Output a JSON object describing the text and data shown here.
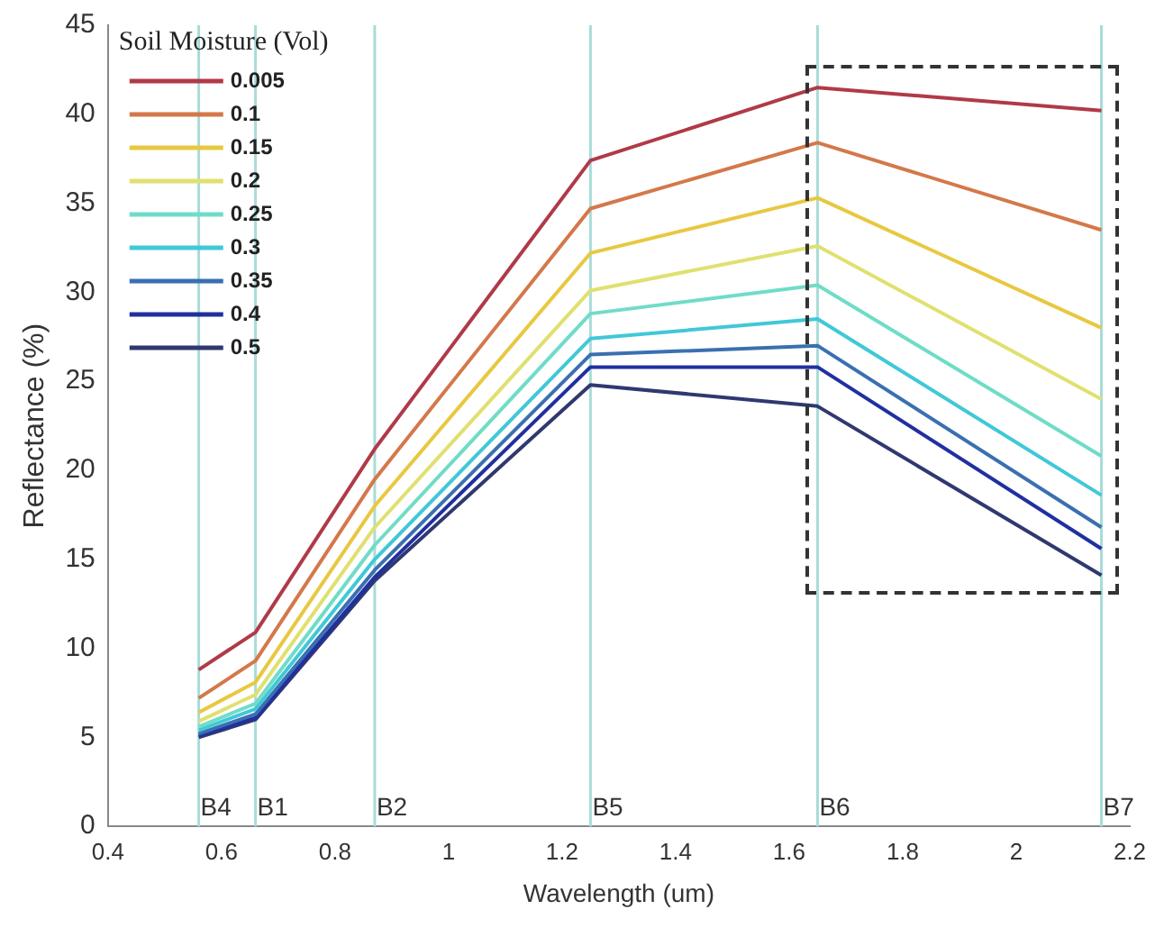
{
  "chart_data": {
    "type": "line",
    "xlabel": "Wavelength (um)",
    "ylabel": "Reflectance (%)",
    "legend_title": "Soil Moisture (Vol)",
    "legend": "top left",
    "marker": "none",
    "line_style": "solid",
    "grid": false,
    "x": [
      0.56,
      0.66,
      0.87,
      1.25,
      1.65,
      2.15
    ],
    "xlim": [
      0.4,
      2.2
    ],
    "xticks": [
      0.4,
      0.6,
      0.8,
      1,
      1.2,
      1.4,
      1.6,
      1.8,
      2,
      2.2
    ],
    "ylim": [
      0,
      45
    ],
    "yticks": [
      0,
      5,
      10,
      15,
      20,
      25,
      30,
      35,
      40,
      45
    ],
    "series": [
      {
        "name": "0.005",
        "color": "#b03a48",
        "values": [
          8.8,
          10.9,
          21.2,
          37.4,
          41.5,
          40.2
        ]
      },
      {
        "name": "0.1",
        "color": "#d4784a",
        "values": [
          7.2,
          9.3,
          19.5,
          34.7,
          38.4,
          33.5
        ]
      },
      {
        "name": "0.15",
        "color": "#e8c840",
        "values": [
          6.4,
          8.1,
          18.0,
          32.2,
          35.3,
          28.0
        ]
      },
      {
        "name": "0.2",
        "color": "#e0e070",
        "values": [
          5.9,
          7.4,
          16.8,
          30.1,
          32.6,
          24.0
        ]
      },
      {
        "name": "0.25",
        "color": "#70dcc8",
        "values": [
          5.6,
          6.9,
          15.8,
          28.8,
          30.4,
          20.8
        ]
      },
      {
        "name": "0.3",
        "color": "#40c8d8",
        "values": [
          5.4,
          6.6,
          15.0,
          27.4,
          28.5,
          18.6
        ]
      },
      {
        "name": "0.35",
        "color": "#3a70b0",
        "values": [
          5.2,
          6.3,
          14.4,
          26.5,
          27.0,
          16.8
        ]
      },
      {
        "name": "0.4",
        "color": "#2030a0",
        "values": [
          5.1,
          6.1,
          14.0,
          25.8,
          25.8,
          15.6
        ]
      },
      {
        "name": "0.5",
        "color": "#303870",
        "values": [
          5.0,
          6.0,
          13.8,
          24.8,
          23.6,
          14.1
        ]
      }
    ],
    "ref_lines": [
      {
        "axis": "x",
        "value": 0.56,
        "label": "B4",
        "color": "#a8dcd8"
      },
      {
        "axis": "x",
        "value": 0.66,
        "label": "B1",
        "color": "#a8dcd8"
      },
      {
        "axis": "x",
        "value": 0.87,
        "label": "B2",
        "color": "#a8dcd8"
      },
      {
        "axis": "x",
        "value": 1.25,
        "label": "B5",
        "color": "#a8dcd8"
      },
      {
        "axis": "x",
        "value": 1.65,
        "label": "B6",
        "color": "#a8dcd8"
      },
      {
        "axis": "x",
        "value": 2.15,
        "label": "B7",
        "color": "#a8dcd8"
      }
    ]
  }
}
